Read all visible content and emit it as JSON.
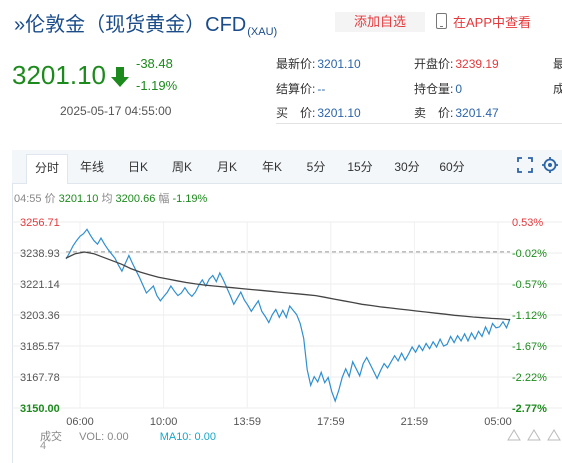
{
  "header": {
    "title_prefix": "»",
    "title": "伦敦金（现货黄金）CFD",
    "title_sub": "(XAU)",
    "add_favorite": "添加自选",
    "view_in_app": "在APP中查看",
    "phone_icon": "phone-icon"
  },
  "quote": {
    "price": "3201.10",
    "change": "-38.48",
    "change_pct": "-1.19%",
    "timestamp": "2025-05-17 04:55:00",
    "arrow_icon": "arrow-down-icon",
    "color_down": "#1d8a1d",
    "fields": [
      {
        "label": "最新价:",
        "value": "3201.10"
      },
      {
        "label": "开盘价:",
        "value": "3239.19"
      },
      {
        "label": "最",
        "value": ""
      },
      {
        "label": "结算价:",
        "value": "--"
      },
      {
        "label": "持仓量:",
        "value": "0"
      },
      {
        "label": "成",
        "value": ""
      },
      {
        "label": "买　价:",
        "value": "3201.10"
      },
      {
        "label": "卖　价:",
        "value": "3201.47"
      }
    ]
  },
  "tabs": [
    {
      "label": "分时",
      "active": true
    },
    {
      "label": "年线"
    },
    {
      "label": "日K"
    },
    {
      "label": "周K"
    },
    {
      "label": "月K"
    },
    {
      "label": "年K"
    },
    {
      "label": "5分"
    },
    {
      "label": "15分"
    },
    {
      "label": "30分"
    },
    {
      "label": "60分"
    }
  ],
  "tool_icons": [
    "fullscreen-icon",
    "settings-icon"
  ],
  "info_bar": {
    "time": "04:55",
    "price_label": "价",
    "price": "3201.10",
    "avg_label": "均",
    "avg": "3200.66",
    "amp_label": "幅",
    "amp": "-1.19%"
  },
  "volume_bar": {
    "label_a": "成交",
    "label_b": "量",
    "vol_label": "VOL:",
    "vol": "0.00",
    "ma_label": "MA10:",
    "ma": "0.00",
    "bottom_value": "4",
    "zoom_icons": [
      "zoom-in-icon",
      "zoom-out-icon"
    ]
  },
  "chart_data": {
    "type": "line",
    "y_ticks": [
      "3256.71",
      "3238.93",
      "3221.14",
      "3203.36",
      "3185.57",
      "3167.78",
      "3150.00"
    ],
    "y_ticks_right": [
      "0.53%",
      "-0.02%",
      "-0.57%",
      "-1.12%",
      "-1.67%",
      "-2.22%",
      "-2.77%"
    ],
    "x_ticks": [
      "06:00",
      "10:00",
      "13:59",
      "17:59",
      "21:59",
      "05:00"
    ],
    "ylim": [
      3150.0,
      3256.71
    ],
    "prev_close": 3239.58,
    "colors": {
      "price": "#2f8fd1",
      "avg": "#444444",
      "up": "#e4393c",
      "down": "#1d8a1d"
    },
    "series": [
      {
        "values": [
          3235.5,
          3239.0,
          3243.0,
          3246.0,
          3248.5,
          3250.0,
          3252.5,
          3249.0,
          3246.0,
          3244.0,
          3247.5,
          3244.0,
          3241.0,
          3238.5,
          3236.0,
          3232.0,
          3228.5,
          3233.0,
          3237.5,
          3233.0,
          3229.0,
          3225.0,
          3220.5,
          3216.0,
          3218.0,
          3220.0,
          3214.5,
          3211.5,
          3214.0,
          3216.5,
          3220.0,
          3217.0,
          3214.5,
          3216.0,
          3219.0,
          3216.0,
          3214.0,
          3216.5,
          3220.5,
          3223.5,
          3220.0,
          3224.0,
          3226.0,
          3222.5,
          3227.5,
          3223.5,
          3219.0,
          3214.5,
          3209.5,
          3213.0,
          3216.5,
          3212.0,
          3209.0,
          3205.5,
          3208.5,
          3211.5,
          3205.5,
          3202.5,
          3199.0,
          3203.5,
          3206.5,
          3202.0,
          3206.0,
          3202.0,
          3208.5,
          3206.0,
          3203.5,
          3198.5,
          3190.0,
          3172.0,
          3163.0,
          3168.0,
          3165.0,
          3170.5,
          3164.5,
          3167.5,
          3159.5,
          3154.0,
          3160.0,
          3167.5,
          3172.5,
          3168.0,
          3176.5,
          3172.5,
          3168.5,
          3175.5,
          3179.0,
          3175.0,
          3171.0,
          3167.0,
          3171.5,
          3175.5,
          3173.0,
          3176.5,
          3180.0,
          3177.0,
          3181.5,
          3177.5,
          3181.0,
          3185.0,
          3182.0,
          3186.0,
          3183.0,
          3187.0,
          3184.0,
          3188.0,
          3185.0,
          3189.5,
          3185.5,
          3186.5,
          3191.0,
          3187.5,
          3191.5,
          3188.5,
          3192.5,
          3188.5,
          3193.0,
          3189.5,
          3194.0,
          3191.0,
          3196.5,
          3192.5,
          3198.5,
          3196.0,
          3196.5,
          3199.5,
          3196.0,
          3201.1
        ]
      },
      {
        "values": [
          3236.0,
          3238.5,
          3239.5,
          3238.5,
          3236.5,
          3234.5,
          3232.5,
          3230.0,
          3228.0,
          3226.5,
          3225.0,
          3224.0,
          3223.0,
          3222.0,
          3221.2,
          3220.5,
          3220.0,
          3219.5,
          3219.0,
          3218.5,
          3218.0,
          3217.5,
          3217.0,
          3216.5,
          3216.0,
          3215.5,
          3215.0,
          3214.5,
          3213.5,
          3212.5,
          3211.5,
          3210.5,
          3209.5,
          3208.8,
          3208.0,
          3207.4,
          3206.8,
          3206.2,
          3205.6,
          3205.0,
          3204.4,
          3203.8,
          3203.2,
          3202.7,
          3202.2,
          3201.8,
          3201.4,
          3201.1,
          3200.66
        ]
      }
    ]
  }
}
